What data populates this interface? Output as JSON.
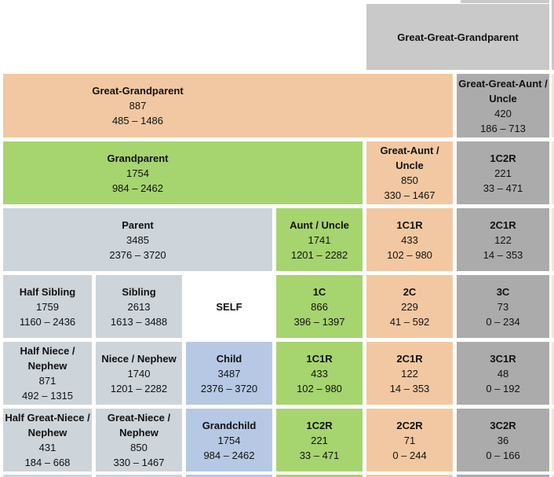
{
  "palette": {
    "peach": "#f2c8a2",
    "green": "#a6d46f",
    "gray": "#ababab",
    "gray_light": "#c9c9c9",
    "blue_gray": "#cdd4da",
    "blue": "#b6c8e4",
    "cream": "#f0e8d0",
    "white": "#ffffff"
  },
  "chart_data": {
    "type": "table",
    "title": "Family relationship shared DNA chart (average cM and range)",
    "rows": [
      {
        "cells": [
          {
            "label": "Great-Great-Grandparent",
            "avg": "",
            "range": "",
            "color": "gray_light",
            "col": 5,
            "span": 2
          }
        ]
      },
      {
        "cells": [
          {
            "label": "Great-Grandparent",
            "avg": "887",
            "range": "485 – 1486",
            "color": "peach",
            "col": 1,
            "span": 5,
            "left_block": true
          },
          {
            "label": "Great-Great-Aunt / Uncle",
            "avg": "420",
            "range": "186 – 713",
            "color": "gray",
            "col": 6,
            "span": 1
          }
        ]
      },
      {
        "cells": [
          {
            "label": "Grandparent",
            "avg": "1754",
            "range": "984 – 2462",
            "color": "green",
            "col": 1,
            "span": 4,
            "left_block": true
          },
          {
            "label": "Great-Aunt / Uncle",
            "avg": "850",
            "range": "330 – 1467",
            "color": "peach",
            "col": 5,
            "span": 1
          },
          {
            "label": "1C2R",
            "avg": "221",
            "range": "33 – 471",
            "color": "gray",
            "col": 6,
            "span": 1
          }
        ]
      },
      {
        "cells": [
          {
            "label": "Parent",
            "avg": "3485",
            "range": "2376 – 3720",
            "color": "blue_gray",
            "col": 1,
            "span": 3
          },
          {
            "label": "Aunt / Uncle",
            "avg": "1741",
            "range": "1201 – 2282",
            "color": "green",
            "col": 4,
            "span": 1
          },
          {
            "label": "1C1R",
            "avg": "433",
            "range": "102 – 980",
            "color": "peach",
            "col": 5,
            "span": 1
          },
          {
            "label": "2C1R",
            "avg": "122",
            "range": "14 – 353",
            "color": "gray",
            "col": 6,
            "span": 1
          }
        ]
      },
      {
        "cells": [
          {
            "label": "Half Sibling",
            "avg": "1759",
            "range": "1160 – 2436",
            "color": "blue_gray",
            "col": 1,
            "span": 1
          },
          {
            "label": "Sibling",
            "avg": "2613",
            "range": "1613 – 3488",
            "color": "blue_gray",
            "col": 2,
            "span": 1
          },
          {
            "label": "SELF",
            "avg": "",
            "range": "",
            "color": "white",
            "col": 3,
            "span": 1
          },
          {
            "label": "1C",
            "avg": "866",
            "range": "396 – 1397",
            "color": "green",
            "col": 4,
            "span": 1
          },
          {
            "label": "2C",
            "avg": "229",
            "range": "41 – 592",
            "color": "peach",
            "col": 5,
            "span": 1
          },
          {
            "label": "3C",
            "avg": "73",
            "range": "0 – 234",
            "color": "gray",
            "col": 6,
            "span": 1
          }
        ]
      },
      {
        "cells": [
          {
            "label": "Half Niece / Nephew",
            "avg": "871",
            "range": "492 – 1315",
            "color": "blue_gray",
            "col": 1,
            "span": 1
          },
          {
            "label": "Niece / Nephew",
            "avg": "1740",
            "range": "1201 – 2282",
            "color": "blue_gray",
            "col": 2,
            "span": 1
          },
          {
            "label": "Child",
            "avg": "3487",
            "range": "2376 – 3720",
            "color": "blue",
            "col": 3,
            "span": 1
          },
          {
            "label": "1C1R",
            "avg": "433",
            "range": "102 – 980",
            "color": "green",
            "col": 4,
            "span": 1
          },
          {
            "label": "2C1R",
            "avg": "122",
            "range": "14 – 353",
            "color": "peach",
            "col": 5,
            "span": 1
          },
          {
            "label": "3C1R",
            "avg": "48",
            "range": "0 – 192",
            "color": "gray",
            "col": 6,
            "span": 1
          }
        ]
      },
      {
        "cells": [
          {
            "label": "Half Great-Niece / Nephew",
            "avg": "431",
            "range": "184 – 668",
            "color": "blue_gray",
            "col": 1,
            "span": 1
          },
          {
            "label": "Great-Niece / Nephew",
            "avg": "850",
            "range": "330 – 1467",
            "color": "blue_gray",
            "col": 2,
            "span": 1
          },
          {
            "label": "Grandchild",
            "avg": "1754",
            "range": "984 – 2462",
            "color": "blue",
            "col": 3,
            "span": 1
          },
          {
            "label": "1C2R",
            "avg": "221",
            "range": "33 – 471",
            "color": "green",
            "col": 4,
            "span": 1
          },
          {
            "label": "2C2R",
            "avg": "71",
            "range": "0 – 244",
            "color": "peach",
            "col": 5,
            "span": 1
          },
          {
            "label": "3C2R",
            "avg": "36",
            "range": "0 – 166",
            "color": "gray",
            "col": 6,
            "span": 1
          }
        ]
      }
    ],
    "partials": {
      "top_right": "gray_light",
      "right_column_top": "gray_light",
      "right_column_side": "cream",
      "bottom_row_columns": [
        "blue_gray",
        "blue_gray",
        "blue",
        "green",
        "peach",
        "gray"
      ]
    }
  }
}
